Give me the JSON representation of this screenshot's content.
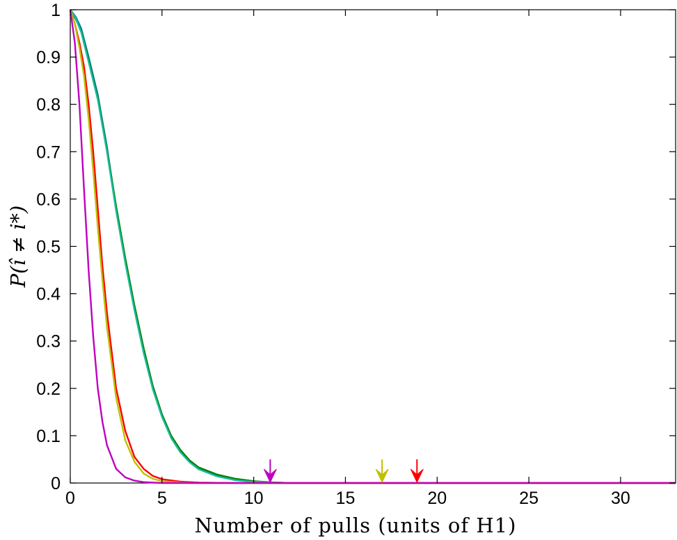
{
  "chart_data": {
    "type": "line",
    "title": "",
    "xlabel": "Number of pulls (units of H1)",
    "ylabel": "P(î ≠ i*)",
    "xlim": [
      0,
      33
    ],
    "ylim": [
      0,
      1
    ],
    "xticks": [
      0,
      5,
      10,
      15,
      20,
      25,
      30
    ],
    "yticks": [
      0,
      0.1,
      0.2,
      0.3,
      0.4,
      0.5,
      0.6,
      0.7,
      0.8,
      0.9,
      1
    ],
    "grid": false,
    "legend": "none",
    "series": [
      {
        "color": "#0072BD",
        "x": [
          0,
          0.3,
          0.6,
          1,
          1.5,
          2,
          2.5,
          3,
          3.5,
          4,
          4.5,
          5,
          5.5,
          6,
          6.5,
          7,
          8,
          9,
          10,
          11,
          12,
          33
        ],
        "y": [
          1,
          0.985,
          0.96,
          0.9,
          0.82,
          0.71,
          0.58,
          0.47,
          0.37,
          0.28,
          0.2,
          0.14,
          0.098,
          0.067,
          0.045,
          0.03,
          0.015,
          0.007,
          0.003,
          0.001,
          0,
          0
        ]
      },
      {
        "color": "#008000",
        "x": [
          0,
          0.3,
          0.6,
          1,
          1.5,
          2,
          2.5,
          3,
          3.5,
          4,
          4.5,
          5,
          5.5,
          6,
          6.5,
          7,
          8,
          9,
          10,
          11,
          12,
          33
        ],
        "y": [
          1,
          0.98,
          0.955,
          0.895,
          0.815,
          0.705,
          0.585,
          0.475,
          0.375,
          0.285,
          0.205,
          0.145,
          0.1,
          0.07,
          0.048,
          0.033,
          0.018,
          0.009,
          0.004,
          0.0015,
          0,
          0
        ]
      },
      {
        "color": "#1ABC9C",
        "x": [
          0,
          0.3,
          0.6,
          1,
          1.5,
          2,
          2.5,
          3,
          3.5,
          4,
          4.5,
          5,
          5.5,
          6,
          6.5,
          7,
          8,
          9,
          10,
          11,
          12,
          33
        ],
        "y": [
          1,
          0.982,
          0.952,
          0.89,
          0.81,
          0.7,
          0.575,
          0.465,
          0.365,
          0.275,
          0.198,
          0.14,
          0.095,
          0.065,
          0.044,
          0.029,
          0.014,
          0.006,
          0.0025,
          0.001,
          0,
          0
        ]
      },
      {
        "color": "#FF0000",
        "x": [
          0,
          0.25,
          0.5,
          0.75,
          1,
          1.25,
          1.5,
          1.75,
          2,
          2.5,
          3,
          3.5,
          4,
          4.5,
          5,
          6,
          7,
          8,
          9,
          33
        ],
        "y": [
          1,
          0.97,
          0.93,
          0.88,
          0.8,
          0.7,
          0.58,
          0.46,
          0.36,
          0.2,
          0.11,
          0.055,
          0.03,
          0.015,
          0.008,
          0.003,
          0.001,
          0.0005,
          0,
          0
        ]
      },
      {
        "color": "#BFBF00",
        "x": [
          0,
          0.25,
          0.5,
          0.75,
          1,
          1.25,
          1.5,
          1.75,
          2,
          2.5,
          3,
          3.5,
          4,
          4.5,
          5,
          6,
          7,
          33
        ],
        "y": [
          1,
          0.97,
          0.92,
          0.86,
          0.77,
          0.66,
          0.54,
          0.43,
          0.33,
          0.18,
          0.09,
          0.045,
          0.02,
          0.009,
          0.004,
          0.001,
          0,
          0
        ]
      },
      {
        "color": "#BF00BF",
        "x": [
          0,
          0.25,
          0.5,
          0.75,
          1,
          1.25,
          1.5,
          1.75,
          2,
          2.5,
          3,
          3.5,
          4,
          5,
          33
        ],
        "y": [
          1,
          0.93,
          0.8,
          0.62,
          0.45,
          0.31,
          0.2,
          0.13,
          0.08,
          0.03,
          0.012,
          0.005,
          0.002,
          0,
          0
        ]
      }
    ],
    "markers": [
      {
        "x": 10.9,
        "color": "#BF00BF"
      },
      {
        "x": 17,
        "color": "#BFBF00"
      },
      {
        "x": 18.9,
        "color": "#FF0000"
      }
    ]
  }
}
